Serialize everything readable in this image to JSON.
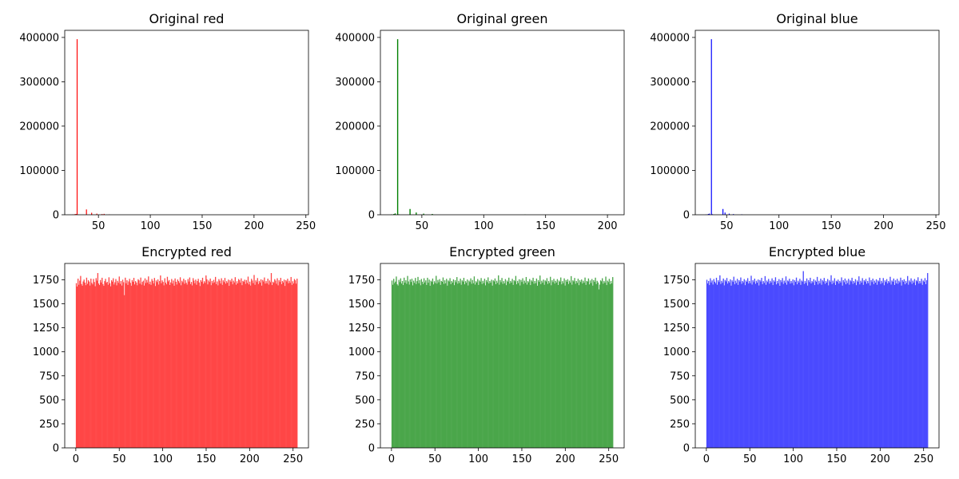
{
  "chart_data": [
    {
      "type": "bar",
      "title": "Original red",
      "color": "#ff0000",
      "xlim": [
        17.5,
        252.5
      ],
      "ylim": [
        0,
        416000
      ],
      "xticks": [
        50,
        100,
        150,
        200,
        250
      ],
      "yticks": [
        0,
        100000,
        200000,
        300000,
        400000
      ],
      "bars": [
        {
          "x": 25,
          "y": 800
        },
        {
          "x": 27,
          "y": 1500
        },
        {
          "x": 28,
          "y": 1800
        },
        {
          "x": 29,
          "y": 396000
        },
        {
          "x": 30,
          "y": 900
        },
        {
          "x": 38,
          "y": 12000
        },
        {
          "x": 43,
          "y": 4500
        },
        {
          "x": 48,
          "y": 2500
        },
        {
          "x": 53,
          "y": 1500
        },
        {
          "x": 55,
          "y": 2000
        },
        {
          "x": 60,
          "y": 700
        }
      ]
    },
    {
      "type": "bar",
      "title": "Original green",
      "color": "#008000",
      "xlim": [
        16.5,
        213.5
      ],
      "ylim": [
        0,
        416000
      ],
      "xticks": [
        50,
        100,
        150,
        200
      ],
      "yticks": [
        0,
        100000,
        200000,
        300000,
        400000
      ],
      "bars": [
        {
          "x": 25,
          "y": 900
        },
        {
          "x": 27,
          "y": 1800
        },
        {
          "x": 28,
          "y": 3000
        },
        {
          "x": 30,
          "y": 396000
        },
        {
          "x": 31,
          "y": 1000
        },
        {
          "x": 40,
          "y": 13000
        },
        {
          "x": 45,
          "y": 5000
        },
        {
          "x": 51,
          "y": 2500
        },
        {
          "x": 58,
          "y": 1800
        },
        {
          "x": 133,
          "y": 500
        },
        {
          "x": 200,
          "y": 500
        }
      ]
    },
    {
      "type": "bar",
      "title": "Original blue",
      "color": "#0000ff",
      "xlim": [
        20,
        253
      ],
      "ylim": [
        0,
        416000
      ],
      "xticks": [
        50,
        100,
        150,
        200,
        250
      ],
      "yticks": [
        0,
        100000,
        200000,
        300000,
        400000
      ],
      "bars": [
        {
          "x": 30,
          "y": 900
        },
        {
          "x": 32,
          "y": 1800
        },
        {
          "x": 33,
          "y": 2500
        },
        {
          "x": 35,
          "y": 396000
        },
        {
          "x": 36,
          "y": 1200
        },
        {
          "x": 46,
          "y": 13000
        },
        {
          "x": 48,
          "y": 5000
        },
        {
          "x": 52,
          "y": 2500
        },
        {
          "x": 56,
          "y": 1500
        },
        {
          "x": 64,
          "y": 1000
        },
        {
          "x": 100,
          "y": 400
        }
      ]
    },
    {
      "type": "bar",
      "title": "Encrypted red",
      "color": "#ff4646",
      "xlim": [
        -12.75,
        267.75
      ],
      "ylim": [
        0,
        1920
      ],
      "xticks": [
        0,
        50,
        100,
        150,
        200,
        250
      ],
      "yticks": [
        0,
        250,
        500,
        750,
        1000,
        1250,
        1500,
        1750
      ],
      "values": [
        1715,
        1680,
        1762,
        1698,
        1741,
        1790,
        1706,
        1688,
        1733,
        1752,
        1720,
        1694,
        1772,
        1708,
        1745,
        1731,
        1690,
        1762,
        1718,
        1702,
        1759,
        1727,
        1683,
        1767,
        1741,
        1820,
        1711,
        1695,
        1748,
        1722,
        1771,
        1705,
        1687,
        1736,
        1760,
        1718,
        1729,
        1698,
        1776,
        1714,
        1682,
        1745,
        1730,
        1766,
        1701,
        1724,
        1758,
        1692,
        1739,
        1719,
        1784,
        1707,
        1737,
        1690,
        1751,
        1725,
        1590,
        1772,
        1713,
        1745,
        1696,
        1733,
        1760,
        1718,
        1688,
        1747,
        1729,
        1770,
        1702,
        1736,
        1721,
        1693,
        1756,
        1744,
        1710,
        1773,
        1699,
        1728,
        1741,
        1690,
        1765,
        1716,
        1749,
        1722,
        1785,
        1705,
        1731,
        1697,
        1758,
        1739,
        1712,
        1769,
        1685,
        1743,
        1726,
        1754,
        1700,
        1737,
        1795,
        1714,
        1744,
        1728,
        1692,
        1766,
        1720,
        1703,
        1781,
        1733,
        1747,
        1696,
        1723,
        1758,
        1711,
        1742,
        1688,
        1764,
        1729,
        1701,
        1753,
        1736,
        1717,
        1776,
        1693,
        1740,
        1725,
        1761,
        1708,
        1746,
        1719,
        1700,
        1757,
        1732,
        1774,
        1706,
        1728,
        1691,
        1767,
        1741,
        1714,
        1752,
        1698,
        1737,
        1760,
        1722,
        1685,
        1746,
        1730,
        1771,
        1709,
        1735,
        1718,
        1795,
        1755,
        1702,
        1743,
        1727,
        1763,
        1694,
        1738,
        1716,
        1749,
        1724,
        1780,
        1705,
        1733,
        1692,
        1757,
        1740,
        1711,
        1766,
        1697,
        1744,
        1726,
        1769,
        1710,
        1736,
        1719,
        1752,
        1687,
        1745,
        1730,
        1762,
        1703,
        1741,
        1723,
        1777,
        1699,
        1735,
        1712,
        1758,
        1746,
        1720,
        1765,
        1694,
        1738,
        1729,
        1751,
        1707,
        1747,
        1717,
        1783,
        1702,
        1731,
        1690,
        1760,
        1742,
        1715,
        1800,
        1698,
        1744,
        1727,
        1768,
        1706,
        1739,
        1721,
        1755,
        1689,
        1748,
        1732,
        1774,
        1710,
        1736,
        1713,
        1762,
        1700,
        1743,
        1725,
        1820,
        1695,
        1730,
        1718,
        1757,
        1741,
        1709,
        1766,
        1692,
        1745,
        1728,
        1770,
        1704,
        1737,
        1722,
        1752,
        1686,
        1746,
        1733,
        1761,
        1714,
        1740,
        1719,
        1779,
        1697,
        1735,
        1711,
        1758,
        1744,
        1710,
        1762
      ]
    },
    {
      "type": "bar",
      "title": "Encrypted green",
      "color": "#4aa64a",
      "xlim": [
        -12.75,
        267.75
      ],
      "ylim": [
        0,
        1920
      ],
      "xticks": [
        0,
        50,
        100,
        150,
        200,
        250
      ],
      "yticks": [
        0,
        250,
        500,
        750,
        1000,
        1250,
        1500,
        1750
      ],
      "values": [
        1742,
        1698,
        1760,
        1715,
        1731,
        1784,
        1703,
        1690,
        1749,
        1726,
        1765,
        1711,
        1737,
        1695,
        1772,
        1720,
        1745,
        1708,
        1790,
        1733,
        1700,
        1754,
        1727,
        1761,
        1692,
        1741,
        1718,
        1769,
        1705,
        1736,
        1780,
        1714,
        1747,
        1693,
        1758,
        1730,
        1706,
        1766,
        1722,
        1744,
        1696,
        1771,
        1719,
        1752,
        1688,
        1740,
        1728,
        1763,
        1702,
        1735,
        1716,
        1791,
        1710,
        1748,
        1724,
        1757,
        1697,
        1738,
        1729,
        1774,
        1707,
        1745,
        1713,
        1760,
        1689,
        1743,
        1732,
        1767,
        1704,
        1737,
        1721,
        1754,
        1694,
        1746,
        1725,
        1778,
        1709,
        1739,
        1717,
        1762,
        1698,
        1744,
        1731,
        1770,
        1703,
        1736,
        1719,
        1753,
        1691,
        1741,
        1727,
        1765,
        1708,
        1748,
        1714,
        1785,
        1700,
        1735,
        1722,
        1758,
        1696,
        1743,
        1730,
        1768,
        1706,
        1739,
        1715,
        1761,
        1692,
        1746,
        1726,
        1775,
        1711,
        1737,
        1720,
        1751,
        1689,
        1744,
        1733,
        1764,
        1704,
        1740,
        1718,
        1796,
        1699,
        1747,
        1725,
        1769,
        1707,
        1736,
        1713,
        1757,
        1694,
        1742,
        1729,
        1772,
        1710,
        1738,
        1721,
        1760,
        1697,
        1745,
        1734,
        1790,
        1703,
        1739,
        1716,
        1755,
        1691,
        1748,
        1727,
        1766,
        1706,
        1741,
        1719,
        1779,
        1700,
        1736,
        1723,
        1758,
        1695,
        1744,
        1731,
        1771,
        1709,
        1737,
        1714,
        1763,
        1688,
        1746,
        1728,
        1794,
        1704,
        1740,
        1720,
        1752,
        1698,
        1743,
        1732,
        1767,
        1707,
        1738,
        1717,
        1781,
        1693,
        1745,
        1726,
        1760,
        1710,
        1739,
        1722,
        1757,
        1696,
        1742,
        1730,
        1774,
        1703,
        1736,
        1715,
        1765,
        1690,
        1747,
        1729,
        1756,
        1706,
        1741,
        1721,
        1788,
        1699,
        1744,
        1733,
        1769,
        1708,
        1737,
        1718,
        1761,
        1694,
        1745,
        1727,
        1753,
        1711,
        1740,
        1720,
        1773,
        1697,
        1738,
        1731,
        1764,
        1702,
        1743,
        1716,
        1758,
        1689,
        1746,
        1728,
        1772,
        1705,
        1739,
        1722,
        1650,
        1700,
        1744,
        1734,
        1766,
        1709,
        1736,
        1719,
        1783,
        1695,
        1741,
        1726,
        1760,
        1704,
        1738,
        1712,
        1778
      ]
    },
    {
      "type": "bar",
      "title": "Encrypted blue",
      "color": "#4a4aff",
      "xlim": [
        -12.75,
        267.75
      ],
      "ylim": [
        0,
        1920
      ],
      "xticks": [
        0,
        50,
        100,
        150,
        200,
        250
      ],
      "yticks": [
        0,
        250,
        500,
        750,
        1000,
        1250,
        1500,
        1750
      ],
      "values": [
        1750,
        1712,
        1738,
        1695,
        1766,
        1722,
        1743,
        1701,
        1758,
        1730,
        1714,
        1771,
        1698,
        1745,
        1727,
        1796,
        1706,
        1739,
        1719,
        1763,
        1692,
        1748,
        1733,
        1769,
        1710,
        1736,
        1721,
        1755,
        1689,
        1744,
        1728,
        1782,
        1703,
        1741,
        1717,
        1760,
        1697,
        1746,
        1731,
        1774,
        1707,
        1737,
        1723,
        1757,
        1694,
        1743,
        1729,
        1767,
        1711,
        1738,
        1715,
        1792,
        1700,
        1745,
        1726,
        1762,
        1708,
        1740,
        1720,
        1753,
        1691,
        1747,
        1732,
        1770,
        1704,
        1736,
        1718,
        1788,
        1698,
        1742,
        1727,
        1759,
        1709,
        1739,
        1722,
        1765,
        1695,
        1744,
        1730,
        1776,
        1702,
        1738,
        1713,
        1757,
        1688,
        1746,
        1725,
        1768,
        1706,
        1741,
        1719,
        1785,
        1699,
        1743,
        1733,
        1761,
        1710,
        1737,
        1716,
        1754,
        1693,
        1745,
        1728,
        1773,
        1703,
        1740,
        1721,
        1760,
        1697,
        1742,
        1731,
        1840,
        1707,
        1738,
        1717,
        1764,
        1690,
        1746,
        1726,
        1771,
        1711,
        1736,
        1723,
        1756,
        1695,
        1743,
        1729,
        1780,
        1701,
        1739,
        1714,
        1762,
        1698,
        1745,
        1732,
        1769,
        1708,
        1737,
        1720,
        1758,
        1692,
        1744,
        1727,
        1797,
        1705,
        1741,
        1718,
        1766,
        1696,
        1740,
        1730,
        1752,
        1710,
        1738,
        1722,
        1775,
        1689,
        1746,
        1725,
        1763,
        1703,
        1742,
        1716,
        1760,
        1699,
        1744,
        1733,
        1771,
        1707,
        1737,
        1719,
        1756,
        1694,
        1743,
        1728,
        1786,
        1702,
        1740,
        1721,
        1767,
        1697,
        1745,
        1731,
        1759,
        1709,
        1738,
        1715,
        1774,
        1691,
        1746,
        1726,
        1762,
        1704,
        1741,
        1720,
        1755,
        1698,
        1743,
        1732,
        1770,
        1706,
        1739,
        1718,
        1768,
        1693,
        1744,
        1727,
        1757,
        1711,
        1737,
        1722,
        1781,
        1700,
        1742,
        1729,
        1763,
        1696,
        1745,
        1713,
        1760,
        1708,
        1740,
        1724,
        1772,
        1690,
        1746,
        1730,
        1756,
        1703,
        1738,
        1717,
        1789,
        1699,
        1743,
        1726,
        1765,
        1707,
        1741,
        1721,
        1758,
        1694,
        1744,
        1733,
        1776,
        1710,
        1737,
        1715,
        1761,
        1697,
        1742,
        1728,
        1767,
        1704,
        1745,
        1820
      ]
    }
  ]
}
